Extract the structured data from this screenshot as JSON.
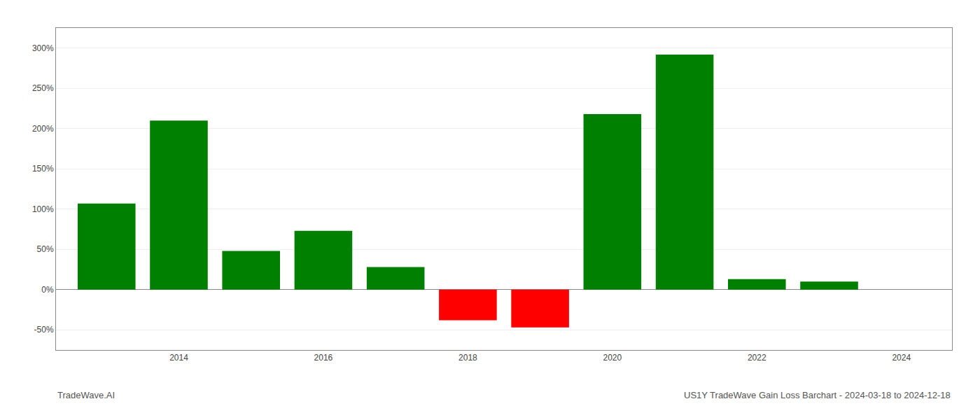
{
  "chart_data": {
    "type": "bar",
    "x": [
      2013,
      2014,
      2015,
      2016,
      2017,
      2018,
      2019,
      2020,
      2021,
      2022,
      2023
    ],
    "values": [
      107,
      210,
      48,
      73,
      28,
      -38,
      -47,
      218,
      292,
      13,
      10
    ],
    "colors": [
      "#008000",
      "#008000",
      "#008000",
      "#008000",
      "#008000",
      "#ff0000",
      "#ff0000",
      "#008000",
      "#008000",
      "#008000",
      "#008000"
    ],
    "xlim": [
      2012.3,
      2024.7
    ],
    "xticks": [
      2014,
      2016,
      2018,
      2020,
      2022,
      2024
    ],
    "ylim": [
      -75,
      325
    ],
    "yticks": [
      {
        "value": -50,
        "label": "-50%"
      },
      {
        "value": 0,
        "label": "0%"
      },
      {
        "value": 50,
        "label": "50%"
      },
      {
        "value": 100,
        "label": "100%"
      },
      {
        "value": 150,
        "label": "150%"
      },
      {
        "value": 200,
        "label": "200%"
      },
      {
        "value": 250,
        "label": "250%"
      },
      {
        "value": 300,
        "label": "300%"
      }
    ],
    "grid": "y",
    "annotations": [
      "TradeWave.AI",
      "US1Y TradeWave Gain Loss Barchart - 2024-03-18 to 2024-12-18"
    ]
  }
}
